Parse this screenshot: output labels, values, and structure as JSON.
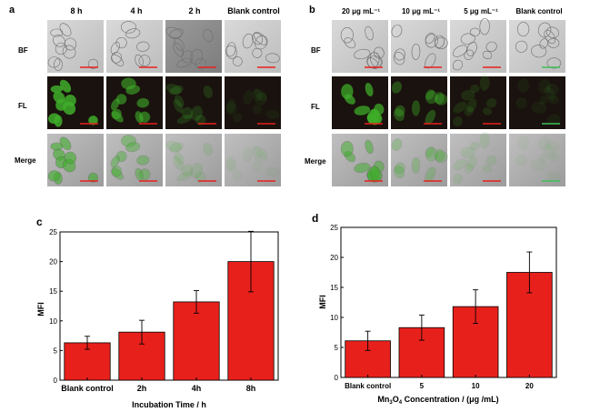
{
  "panel_a": {
    "letter": "a",
    "columns": [
      "8 h",
      "4 h",
      "2 h",
      "Blank control"
    ],
    "rows": [
      "BF",
      "FL",
      "Merge"
    ],
    "fl_intensity": [
      1.0,
      0.7,
      0.25,
      0.1
    ]
  },
  "panel_b": {
    "letter": "b",
    "columns": [
      "20 μg mL⁻¹",
      "10 μg mL⁻¹",
      "5 μg mL⁻¹",
      "Blank control"
    ],
    "rows": [
      "BF",
      "FL",
      "Merge"
    ],
    "fl_intensity": [
      0.85,
      0.45,
      0.2,
      0.1
    ]
  },
  "colors": {
    "bar_fill": "#e8201c",
    "scale_bar_red": "#e8201c",
    "scale_bar_green": "#3fbf5a",
    "fl_background": "#1a120e",
    "fl_cell": "#3fae2a"
  },
  "chart_data": [
    {
      "letter": "c",
      "type": "bar",
      "categories": [
        "Blank control",
        "2h",
        "4h",
        "8h"
      ],
      "values": [
        6.3,
        8.1,
        13.2,
        20.0
      ],
      "errors": [
        1.1,
        2.0,
        1.9,
        5.1
      ],
      "xlabel": "Incubation Time / h",
      "ylabel": "MFI",
      "ylim": [
        0,
        25
      ],
      "yticks": [
        "0",
        "5",
        "10",
        "15",
        "20",
        "25"
      ],
      "grid": false
    },
    {
      "letter": "d",
      "type": "bar",
      "categories": [
        "Blank control",
        "5",
        "10",
        "20"
      ],
      "values": [
        6.1,
        8.3,
        11.8,
        17.5
      ],
      "errors": [
        1.6,
        2.1,
        2.8,
        3.4
      ],
      "xlabel_pre": "Mn",
      "xlabel_sub1": "3",
      "xlabel_mid": "O",
      "xlabel_sub2": "4",
      "xlabel_post": " Concentration / (μg /mL)",
      "ylabel": "MFI",
      "ylim": [
        0,
        25
      ],
      "yticks": [
        "0",
        "5",
        "10",
        "15",
        "20",
        "25"
      ],
      "grid": false
    }
  ]
}
